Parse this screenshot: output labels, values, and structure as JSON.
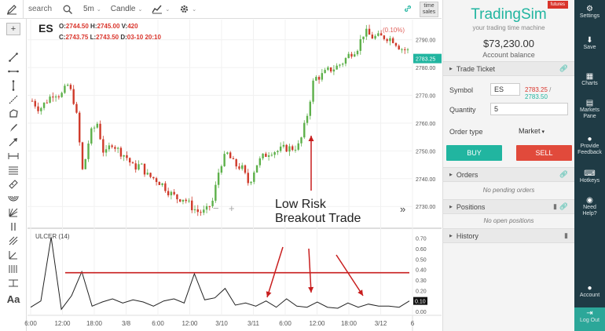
{
  "toolbar": {
    "search_label": "search",
    "interval": "5m",
    "chart_style": "Candle",
    "time_sales": [
      "time",
      "sales"
    ]
  },
  "chart": {
    "symbol": "ES",
    "ohlc_line1": {
      "o_label": "O:",
      "o": "2744.50",
      "h_label": "H:",
      "h": "2745.00",
      "v_label": "V:",
      "v": "420"
    },
    "ohlc_line2": {
      "c_label": "C:",
      "c": "2743.75",
      "l_label": "L:",
      "l": "2743.50",
      "d_label": "D:",
      "d": "03-10 20:10"
    },
    "change_label": "(0.10%)",
    "current_price": "2783.25",
    "indicator_label": "ULCER (14)",
    "indicator_value": "0.10",
    "annotation_line1": "Low Risk",
    "annotation_line2": "Breakout Trade",
    "zoom_minus": "−",
    "zoom_plus": "+",
    "scroll_right": "»",
    "price_ticks": [
      "2790.00",
      "2780.00",
      "2770.00",
      "2760.00",
      "2750.00",
      "2740.00",
      "2730.00"
    ],
    "ulcer_ticks": [
      "0.70",
      "0.60",
      "0.50",
      "0.40",
      "0.30",
      "0.20",
      "0.10",
      "0.00"
    ],
    "time_ticks": [
      "6:00",
      "12:00",
      "18:00",
      "3/8",
      "6:00",
      "12:00",
      "3/10",
      "3/11",
      "6:00",
      "12:00",
      "18:00",
      "3/12",
      "6"
    ]
  },
  "chart_data": {
    "type": "candlestick",
    "symbol": "ES",
    "ylim": [
      2723,
      2795
    ],
    "series": [
      {
        "name": "price",
        "values": [
          2768,
          2765,
          2768,
          2771,
          2770,
          2774,
          2766,
          2742,
          2756,
          2760,
          2748,
          2753,
          2750,
          2748,
          2744,
          2745,
          2741,
          2740,
          2738,
          2735,
          2733,
          2733,
          2730,
          2728,
          2728,
          2732,
          2745,
          2749,
          2745,
          2744,
          2738,
          2745,
          2748,
          2750,
          2750,
          2751,
          2751,
          2752,
          2762,
          2776,
          2777,
          2779,
          2780,
          2782,
          2785,
          2787,
          2793,
          2791,
          2791,
          2791,
          2790,
          2787,
          2786
        ]
      },
      {
        "name": "ULCER (14)",
        "values": [
          0.04,
          0.1,
          0.71,
          0.02,
          0.15,
          0.38,
          0.05,
          0.09,
          0.12,
          0.08,
          0.11,
          0.09,
          0.05,
          0.1,
          0.12,
          0.08,
          0.36,
          0.11,
          0.13,
          0.22,
          0.06,
          0.08,
          0.05,
          0.1,
          0.04,
          0.12,
          0.05,
          0.04,
          0.09,
          0.04,
          0.03,
          0.08,
          0.04,
          0.07,
          0.05,
          0.05,
          0.04,
          0.1
        ]
      }
    ],
    "ulcer_ylim": [
      0,
      0.75
    ],
    "ulcer_reference": 0.37
  },
  "panel": {
    "futures_badge": "futures",
    "brand": "TradingSim",
    "tagline": "your trading time machine",
    "balance": "$73,230.00",
    "balance_label": "Account balance",
    "trade_ticket": "Trade Ticket",
    "symbol_label": "Symbol",
    "symbol_value": "ES",
    "bid": "2783.25",
    "ask": "2783.50",
    "quantity_label": "Quantity",
    "quantity_value": "5",
    "order_type_label": "Order type",
    "order_type_value": "Market",
    "buy": "BUY",
    "sell": "SELL",
    "orders": "Orders",
    "no_orders": "No pending orders",
    "positions": "Positions",
    "no_positions": "No open positions",
    "history": "History"
  },
  "nav": {
    "settings": "Settings",
    "save": "Save",
    "charts": "Charts",
    "markets": [
      "Markets",
      "Pane"
    ],
    "feedback": [
      "Provide",
      "Feedback"
    ],
    "hotkeys": "Hotkeys",
    "help": [
      "Need",
      "Help?"
    ],
    "account": "Account",
    "logout": "Log Out"
  },
  "colors": {
    "teal": "#21b5a0",
    "red": "#d9342b",
    "nav_bg": "#1f3b45",
    "candle_up": "#5db04a",
    "candle_down": "#cf3a2a"
  }
}
